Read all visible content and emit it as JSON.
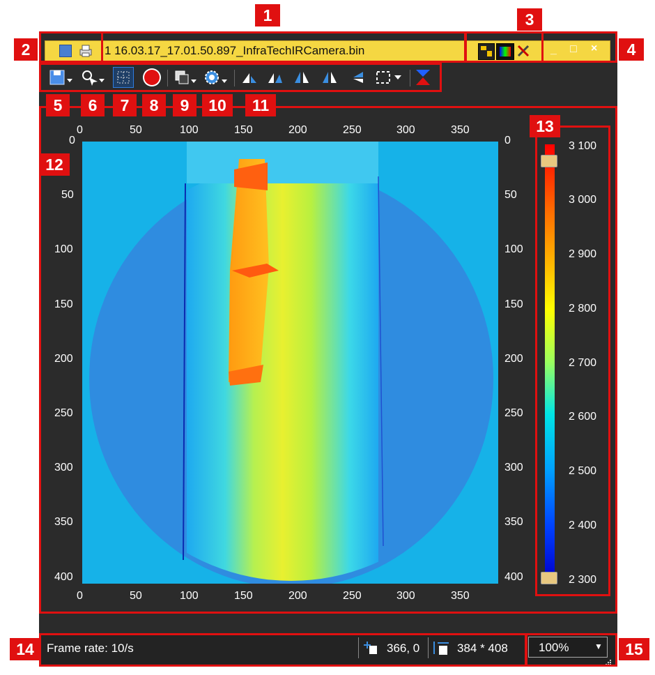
{
  "window": {
    "title": "1 16.03.17_17.01.50.897_InfraTechIRCamera.bin",
    "controls": [
      "_",
      "□",
      "×"
    ]
  },
  "callouts": [
    "1",
    "2",
    "3",
    "4",
    "5",
    "6",
    "7",
    "8",
    "9",
    "10",
    "11",
    "12",
    "13",
    "14",
    "15"
  ],
  "toolbar": {
    "icons": [
      "save-icon",
      "pointer-icon",
      "roi-select-icon",
      "record-icon",
      "copy-icon",
      "settings-gear-icon",
      "rotate-left-icon",
      "rotate-right-icon",
      "flip-horizontal-icon",
      "mirror-icon",
      "flip-vertical-icon",
      "select-area-icon",
      "swap-colors-icon"
    ]
  },
  "image_axes": {
    "x_ticks": [
      "0",
      "50",
      "100",
      "150",
      "200",
      "250",
      "300",
      "350"
    ],
    "y_ticks": [
      "0",
      "50",
      "100",
      "150",
      "200",
      "250",
      "300",
      "350",
      "400"
    ]
  },
  "colorbar": {
    "ticks": [
      "3 100",
      "3 000",
      "2 900",
      "2 800",
      "2 700",
      "2 600",
      "2 500",
      "2 400",
      "2 300"
    ],
    "colors": [
      "#ff0000",
      "#ff6a00",
      "#ffc800",
      "#ffff00",
      "#9bff5e",
      "#00e5e5",
      "#00a0ff",
      "#0040ff",
      "#0000cc"
    ]
  },
  "status": {
    "frame_rate": "Frame rate: 10/s",
    "cursor_pos": "366, 0",
    "image_size": "384 * 408",
    "zoom": "100%"
  }
}
